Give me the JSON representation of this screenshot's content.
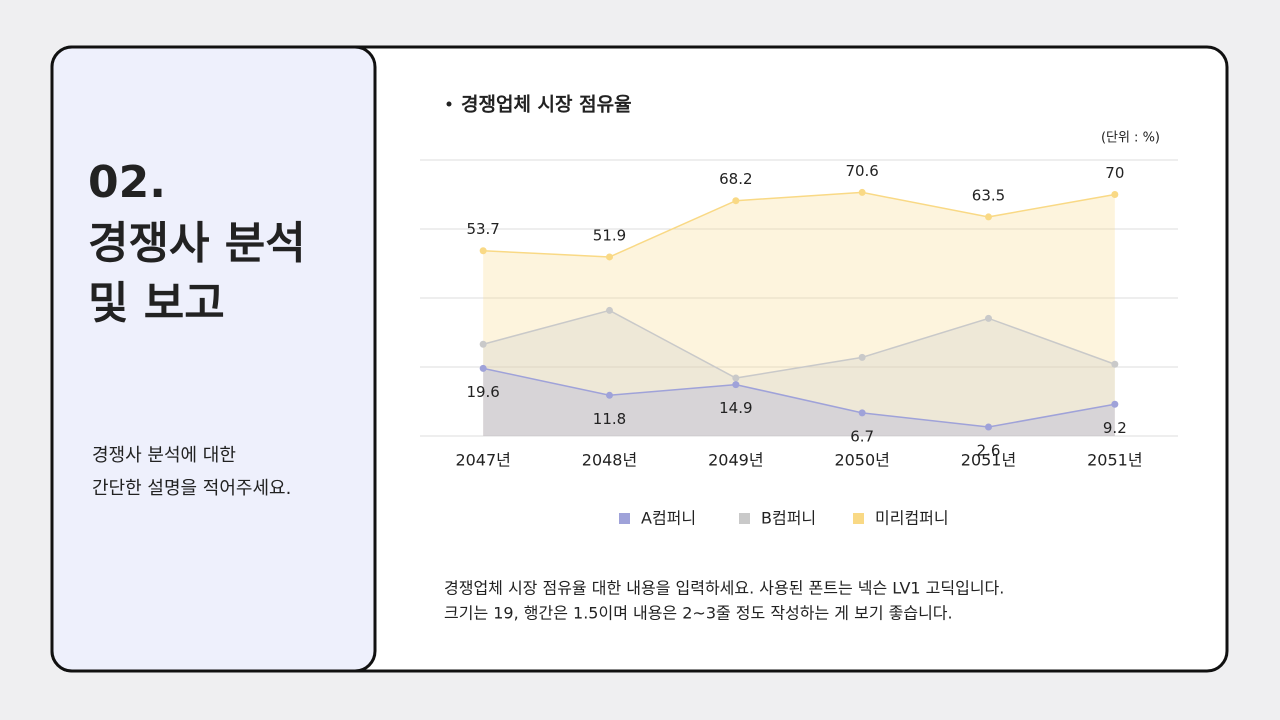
{
  "sidebar": {
    "number": "02.",
    "title_lines": [
      "경쟁사 분석",
      "및 보고"
    ],
    "description_lines": [
      "경쟁사 분석에 대한",
      "간단한 설명을 적어주세요."
    ]
  },
  "chart_data": {
    "type": "line",
    "area": true,
    "title": "경쟁업체 시장 점유율",
    "unit_label": "(단위 : %)",
    "categories": [
      "2047년",
      "2048년",
      "2049년",
      "2050년",
      "2051년",
      "2051년"
    ],
    "series": [
      {
        "name": "A컴퍼니",
        "color": "#9fa2d9",
        "values": [
          19.6,
          11.8,
          14.9,
          6.7,
          2.6,
          9.2
        ],
        "label_position": "below"
      },
      {
        "name": "B컴퍼니",
        "color": "#c9c9c9",
        "values": [
          26.6,
          36.4,
          16.8,
          22.8,
          34.1,
          20.8
        ]
      },
      {
        "name": "미리컴퍼니",
        "color": "#f9d985",
        "values": [
          53.7,
          51.9,
          68.2,
          70.6,
          63.5,
          70
        ],
        "label_position": "above"
      }
    ],
    "ylim": [
      0,
      80
    ],
    "yticks": [
      0,
      20,
      40,
      60,
      80
    ],
    "grid": true,
    "legend": "bottom"
  },
  "body_lines": [
    "경쟁업체 시장 점유율 대한 내용을 입력하세요. 사용된 폰트는 넥슨 LV1 고딕입니다.",
    "크기는 19, 행간은 1.5이며 내용은 2~3줄 정도 작성하는 게 보기 좋습니다."
  ]
}
